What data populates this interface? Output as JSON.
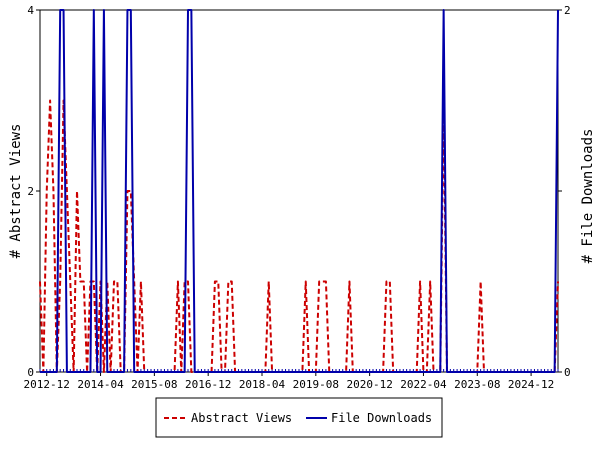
{
  "chart_data": {
    "type": "line",
    "x_start": "2012-10",
    "x_end": "2025-09",
    "x_tick_labels": [
      "2012-12",
      "2014-04",
      "2015-08",
      "2016-12",
      "2018-04",
      "2019-08",
      "2020-12",
      "2022-04",
      "2023-08",
      "2024-12"
    ],
    "left_axis": {
      "label": "# Abstract Views",
      "ylim": [
        0,
        4
      ],
      "ticks": [
        "0",
        "2",
        "4"
      ]
    },
    "right_axis": {
      "label": "# File Downloads",
      "ylim": [
        0,
        2
      ],
      "ticks": [
        "0",
        "1",
        "2"
      ]
    },
    "legend_placement": "bottom-center",
    "series": [
      {
        "name": "Abstract Views",
        "axis": "left",
        "color": "#cc0000",
        "style": "dashed",
        "values": [
          1,
          0,
          2,
          3,
          2,
          0,
          1,
          3,
          2,
          1,
          0,
          2,
          1,
          1,
          0,
          1,
          1,
          0,
          1,
          0,
          1,
          0,
          1,
          1,
          0,
          0,
          2,
          2,
          1,
          0,
          1,
          0,
          0,
          0,
          0,
          0,
          0,
          0,
          0,
          0,
          0,
          1,
          0,
          1,
          1,
          0,
          0,
          0,
          0,
          0,
          0,
          0,
          1,
          1,
          0,
          0,
          1,
          1,
          0,
          0,
          0,
          0,
          0,
          0,
          0,
          0,
          0,
          0,
          1,
          0,
          0,
          0,
          0,
          0,
          0,
          0,
          0,
          0,
          0,
          1,
          0,
          0,
          0,
          1,
          1,
          1,
          0,
          0,
          0,
          0,
          0,
          0,
          1,
          0,
          0,
          0,
          0,
          0,
          0,
          0,
          0,
          0,
          0,
          1,
          1,
          0,
          0,
          0,
          0,
          0,
          0,
          0,
          0,
          1,
          0,
          0,
          1,
          0,
          0,
          0,
          3,
          0,
          0,
          0,
          0,
          0,
          0,
          0,
          0,
          0,
          0,
          1,
          0,
          0,
          0,
          0,
          0,
          0,
          0,
          0,
          0,
          0,
          0,
          0,
          0,
          0,
          0,
          0,
          0,
          0,
          0,
          0,
          0,
          0,
          1
        ]
      },
      {
        "name": "File Downloads",
        "axis": "right",
        "color": "#0000aa",
        "style": "solid",
        "values": [
          0,
          0,
          0,
          0,
          0,
          0,
          2,
          2,
          0,
          0,
          0,
          0,
          0,
          0,
          0,
          0,
          2,
          0,
          0,
          2,
          0,
          0,
          0,
          0,
          0,
          0,
          2,
          2,
          0,
          0,
          0,
          0,
          0,
          0,
          0,
          0,
          0,
          0,
          0,
          0,
          0,
          0,
          0,
          0,
          2,
          2,
          0,
          0,
          0,
          0,
          0,
          0,
          0,
          0,
          0,
          0,
          0,
          0,
          0,
          0,
          0,
          0,
          0,
          0,
          0,
          0,
          0,
          0,
          0,
          0,
          0,
          0,
          0,
          0,
          0,
          0,
          0,
          0,
          0,
          0,
          0,
          0,
          0,
          0,
          0,
          0,
          0,
          0,
          0,
          0,
          0,
          0,
          0,
          0,
          0,
          0,
          0,
          0,
          0,
          0,
          0,
          0,
          0,
          0,
          0,
          0,
          0,
          0,
          0,
          0,
          0,
          0,
          0,
          0,
          0,
          0,
          0,
          0,
          0,
          0,
          2,
          0,
          0,
          0,
          0,
          0,
          0,
          0,
          0,
          0,
          0,
          0,
          0,
          0,
          0,
          0,
          0,
          0,
          0,
          0,
          0,
          0,
          0,
          0,
          0,
          0,
          0,
          0,
          0,
          0,
          0,
          0,
          0,
          0,
          2
        ]
      }
    ]
  },
  "colors": {
    "plot_border": "#000000",
    "axis_tick": "#0000aa"
  }
}
